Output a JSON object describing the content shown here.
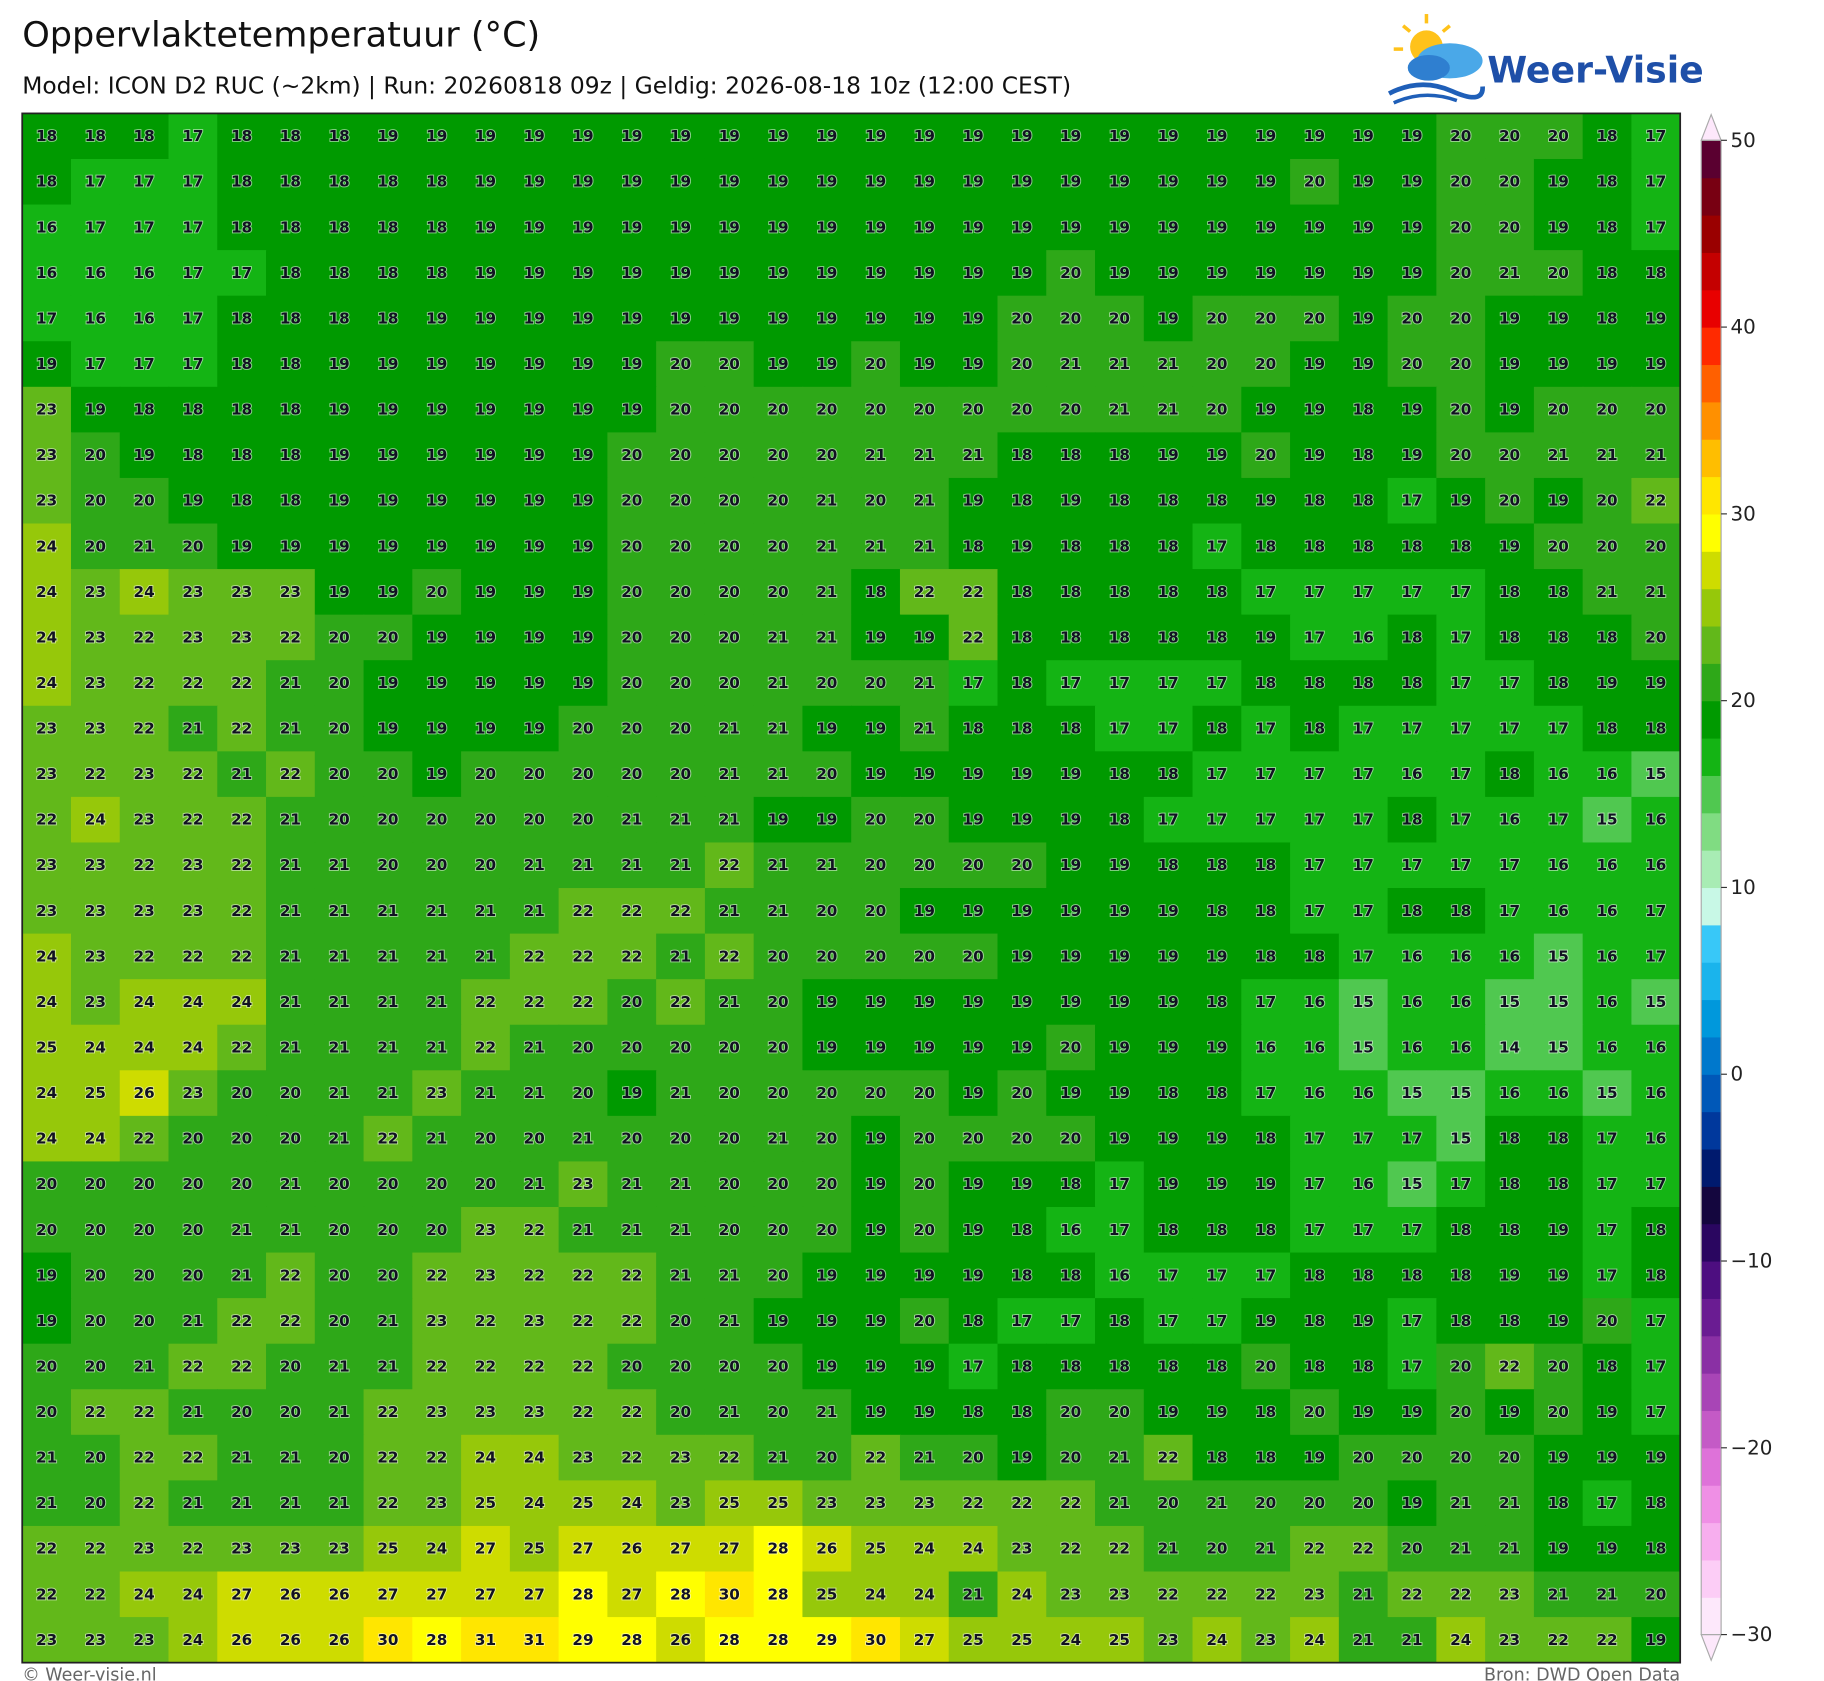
{
  "header": {
    "title": "Oppervlaktetemperatuur (°C)",
    "subtitle": "Model: ICON D2 RUC (~2km)  |  Run: 20260818 09z  |  Geldig: 2026-08-18 10z (12:00 CEST)",
    "logo": "Weer-Visie"
  },
  "map": {
    "values": [
      [
        18,
        18,
        18,
        17,
        18,
        18,
        18,
        19,
        19,
        19,
        19,
        19,
        19,
        19,
        19,
        19,
        19,
        19,
        19,
        19,
        19,
        19,
        19,
        19,
        19,
        19,
        19,
        19,
        19,
        20,
        20,
        20,
        18,
        17
      ],
      [
        18,
        17,
        17,
        17,
        18,
        18,
        18,
        18,
        18,
        19,
        19,
        19,
        19,
        19,
        19,
        19,
        19,
        19,
        19,
        19,
        19,
        19,
        19,
        19,
        19,
        19,
        20,
        19,
        19,
        20,
        20,
        19,
        18,
        17
      ],
      [
        16,
        17,
        17,
        17,
        18,
        18,
        18,
        18,
        18,
        19,
        19,
        19,
        19,
        19,
        19,
        19,
        19,
        19,
        19,
        19,
        19,
        19,
        19,
        19,
        19,
        19,
        19,
        19,
        19,
        20,
        20,
        19,
        18,
        17
      ],
      [
        16,
        16,
        16,
        17,
        17,
        18,
        18,
        18,
        18,
        19,
        19,
        19,
        19,
        19,
        19,
        19,
        19,
        19,
        19,
        19,
        19,
        20,
        19,
        19,
        19,
        19,
        19,
        19,
        19,
        20,
        21,
        20,
        18,
        18
      ],
      [
        17,
        16,
        16,
        17,
        18,
        18,
        18,
        18,
        19,
        19,
        19,
        19,
        19,
        19,
        19,
        19,
        19,
        19,
        19,
        19,
        20,
        20,
        20,
        19,
        20,
        20,
        20,
        19,
        20,
        20,
        19,
        19,
        18,
        19
      ],
      [
        19,
        17,
        17,
        17,
        18,
        18,
        19,
        19,
        19,
        19,
        19,
        19,
        19,
        20,
        20,
        19,
        19,
        20,
        19,
        19,
        20,
        21,
        21,
        21,
        20,
        20,
        19,
        19,
        20,
        20,
        19,
        19,
        19,
        19
      ],
      [
        23,
        19,
        18,
        18,
        18,
        18,
        19,
        19,
        19,
        19,
        19,
        19,
        19,
        20,
        20,
        20,
        20,
        20,
        20,
        20,
        20,
        20,
        21,
        21,
        20,
        19,
        19,
        18,
        19,
        20,
        19,
        20,
        20,
        20
      ],
      [
        23,
        20,
        19,
        18,
        18,
        18,
        19,
        19,
        19,
        19,
        19,
        19,
        20,
        20,
        20,
        20,
        20,
        21,
        21,
        21,
        18,
        18,
        18,
        19,
        19,
        20,
        19,
        18,
        19,
        20,
        20,
        21,
        21,
        21
      ],
      [
        23,
        20,
        20,
        19,
        18,
        18,
        19,
        19,
        19,
        19,
        19,
        19,
        20,
        20,
        20,
        20,
        21,
        20,
        21,
        19,
        18,
        19,
        18,
        18,
        18,
        19,
        18,
        18,
        17,
        19,
        20,
        19,
        20,
        22
      ],
      [
        24,
        20,
        21,
        20,
        19,
        19,
        19,
        19,
        19,
        19,
        19,
        19,
        20,
        20,
        20,
        20,
        21,
        21,
        21,
        18,
        19,
        18,
        18,
        18,
        17,
        18,
        18,
        18,
        18,
        18,
        19,
        20,
        20,
        20
      ],
      [
        24,
        23,
        24,
        23,
        23,
        23,
        19,
        19,
        20,
        19,
        19,
        19,
        20,
        20,
        20,
        20,
        21,
        18,
        22,
        22,
        18,
        18,
        18,
        18,
        18,
        17,
        17,
        17,
        17,
        17,
        18,
        18,
        21,
        21
      ],
      [
        24,
        23,
        22,
        23,
        23,
        22,
        20,
        20,
        19,
        19,
        19,
        19,
        20,
        20,
        20,
        21,
        21,
        19,
        19,
        22,
        18,
        18,
        18,
        18,
        18,
        19,
        17,
        16,
        18,
        17,
        18,
        18,
        18,
        20
      ],
      [
        24,
        23,
        22,
        22,
        22,
        21,
        20,
        19,
        19,
        19,
        19,
        19,
        20,
        20,
        20,
        21,
        20,
        20,
        21,
        17,
        18,
        17,
        17,
        17,
        17,
        18,
        18,
        18,
        18,
        17,
        17,
        18,
        19,
        19
      ],
      [
        23,
        23,
        22,
        21,
        22,
        21,
        20,
        19,
        19,
        19,
        19,
        20,
        20,
        20,
        21,
        21,
        19,
        19,
        21,
        18,
        18,
        18,
        17,
        17,
        18,
        17,
        18,
        17,
        17,
        17,
        17,
        17,
        18,
        18
      ],
      [
        23,
        22,
        23,
        22,
        21,
        22,
        20,
        20,
        19,
        20,
        20,
        20,
        20,
        20,
        21,
        21,
        20,
        19,
        19,
        19,
        19,
        19,
        18,
        18,
        17,
        17,
        17,
        17,
        16,
        17,
        18,
        16,
        16,
        15
      ],
      [
        22,
        24,
        23,
        22,
        22,
        21,
        20,
        20,
        20,
        20,
        20,
        20,
        21,
        21,
        21,
        19,
        19,
        20,
        20,
        19,
        19,
        19,
        18,
        17,
        17,
        17,
        17,
        17,
        18,
        17,
        16,
        17,
        15,
        16
      ],
      [
        23,
        23,
        22,
        23,
        22,
        21,
        21,
        20,
        20,
        20,
        21,
        21,
        21,
        21,
        22,
        21,
        21,
        20,
        20,
        20,
        20,
        19,
        19,
        18,
        18,
        18,
        17,
        17,
        17,
        17,
        17,
        16,
        16,
        16
      ],
      [
        23,
        23,
        23,
        23,
        22,
        21,
        21,
        21,
        21,
        21,
        21,
        22,
        22,
        22,
        21,
        21,
        20,
        20,
        19,
        19,
        19,
        19,
        19,
        19,
        18,
        18,
        17,
        17,
        18,
        18,
        17,
        16,
        16,
        17
      ],
      [
        24,
        23,
        22,
        22,
        22,
        21,
        21,
        21,
        21,
        21,
        22,
        22,
        22,
        21,
        22,
        20,
        20,
        20,
        20,
        20,
        19,
        19,
        19,
        19,
        19,
        18,
        18,
        17,
        16,
        16,
        16,
        15,
        16,
        17
      ],
      [
        24,
        23,
        24,
        24,
        24,
        21,
        21,
        21,
        21,
        22,
        22,
        22,
        20,
        22,
        21,
        20,
        19,
        19,
        19,
        19,
        19,
        19,
        19,
        19,
        18,
        17,
        16,
        15,
        16,
        16,
        15,
        15,
        16,
        15
      ],
      [
        25,
        24,
        24,
        24,
        22,
        21,
        21,
        21,
        21,
        22,
        21,
        20,
        20,
        20,
        20,
        20,
        19,
        19,
        19,
        19,
        19,
        20,
        19,
        19,
        19,
        16,
        16,
        15,
        16,
        16,
        14,
        15,
        16,
        16
      ],
      [
        24,
        25,
        26,
        23,
        20,
        20,
        21,
        21,
        23,
        21,
        21,
        20,
        19,
        21,
        20,
        20,
        20,
        20,
        20,
        19,
        20,
        19,
        19,
        18,
        18,
        17,
        16,
        16,
        15,
        15,
        16,
        16,
        15,
        16
      ],
      [
        24,
        24,
        22,
        20,
        20,
        20,
        21,
        22,
        21,
        20,
        20,
        21,
        20,
        20,
        20,
        21,
        20,
        19,
        20,
        20,
        20,
        20,
        19,
        19,
        19,
        18,
        17,
        17,
        17,
        15,
        18,
        18,
        17,
        16
      ],
      [
        20,
        20,
        20,
        20,
        20,
        21,
        20,
        20,
        20,
        20,
        21,
        23,
        21,
        21,
        20,
        20,
        20,
        19,
        20,
        19,
        19,
        18,
        17,
        19,
        19,
        19,
        17,
        16,
        15,
        17,
        18,
        18,
        17,
        17
      ],
      [
        20,
        20,
        20,
        20,
        21,
        21,
        20,
        20,
        20,
        23,
        22,
        21,
        21,
        21,
        20,
        20,
        20,
        19,
        20,
        19,
        18,
        16,
        17,
        18,
        18,
        18,
        17,
        17,
        17,
        18,
        18,
        19,
        17,
        18
      ],
      [
        19,
        20,
        20,
        20,
        21,
        22,
        20,
        20,
        22,
        23,
        22,
        22,
        22,
        21,
        21,
        20,
        19,
        19,
        19,
        19,
        18,
        18,
        16,
        17,
        17,
        17,
        18,
        18,
        18,
        18,
        19,
        19,
        17,
        18
      ],
      [
        19,
        20,
        20,
        21,
        22,
        22,
        20,
        21,
        23,
        22,
        23,
        22,
        22,
        20,
        21,
        19,
        19,
        19,
        20,
        18,
        17,
        17,
        18,
        17,
        17,
        19,
        18,
        19,
        17,
        18,
        18,
        19,
        20,
        17
      ],
      [
        20,
        20,
        21,
        22,
        22,
        20,
        21,
        21,
        22,
        22,
        22,
        22,
        20,
        20,
        20,
        20,
        19,
        19,
        19,
        17,
        18,
        18,
        18,
        18,
        18,
        20,
        18,
        18,
        17,
        20,
        22,
        20,
        18,
        17
      ],
      [
        20,
        22,
        22,
        21,
        20,
        20,
        21,
        22,
        23,
        23,
        23,
        22,
        22,
        20,
        21,
        20,
        21,
        19,
        19,
        18,
        18,
        20,
        20,
        19,
        19,
        18,
        20,
        19,
        19,
        20,
        19,
        20,
        19,
        17
      ],
      [
        21,
        20,
        22,
        22,
        21,
        21,
        20,
        22,
        22,
        24,
        24,
        23,
        22,
        23,
        22,
        21,
        20,
        22,
        21,
        20,
        19,
        20,
        21,
        22,
        18,
        18,
        19,
        20,
        20,
        20,
        20,
        19,
        19,
        19
      ],
      [
        21,
        20,
        22,
        21,
        21,
        21,
        21,
        22,
        23,
        25,
        24,
        25,
        24,
        23,
        25,
        25,
        23,
        23,
        23,
        22,
        22,
        22,
        21,
        20,
        21,
        20,
        20,
        20,
        19,
        21,
        21,
        18,
        17,
        18
      ],
      [
        22,
        22,
        23,
        22,
        23,
        23,
        23,
        25,
        24,
        27,
        25,
        27,
        26,
        27,
        27,
        28,
        26,
        25,
        24,
        24,
        23,
        22,
        22,
        21,
        20,
        21,
        22,
        22,
        20,
        21,
        21,
        19,
        19,
        18
      ],
      [
        22,
        22,
        24,
        24,
        27,
        26,
        26,
        27,
        27,
        27,
        27,
        28,
        27,
        28,
        30,
        28,
        25,
        24,
        24,
        21,
        24,
        23,
        23,
        22,
        22,
        22,
        23,
        21,
        22,
        22,
        23,
        21,
        21,
        20
      ],
      [
        23,
        23,
        23,
        24,
        26,
        26,
        26,
        30,
        28,
        31,
        31,
        29,
        28,
        26,
        28,
        28,
        29,
        30,
        27,
        25,
        25,
        24,
        25,
        23,
        24,
        23,
        24,
        21,
        21,
        24,
        23,
        22,
        22,
        19
      ]
    ]
  },
  "colorbar": {
    "lim": [
      -30,
      50
    ],
    "ticks": [
      {
        "value": -30,
        "label": "−30"
      },
      {
        "value": -20,
        "label": "−20"
      },
      {
        "value": -10,
        "label": "−10"
      },
      0,
      10,
      20,
      30,
      40,
      50
    ],
    "colors": [
      "#fde8fb",
      "#fccdf6",
      "#f7aeee",
      "#ef8fe5",
      "#de72d9",
      "#c45ac6",
      "#a845b6",
      "#8a30a4",
      "#6a1c92",
      "#4d0e80",
      "#2a0660",
      "#14063e",
      "#001a6e",
      "#00389c",
      "#0058b8",
      "#0078cc",
      "#0098dc",
      "#1ab4ec",
      "#38c8f8",
      "#c8f8e6",
      "#a8ecb4",
      "#80dc82",
      "#50c850",
      "#14b414",
      "#009a00",
      "#2ea818",
      "#62b81a",
      "#96c80a",
      "#cedc00",
      "#ffff00",
      "#ffe600",
      "#ffbe00",
      "#ff9000",
      "#ff6000",
      "#ff2a00",
      "#e80000",
      "#c40000",
      "#9a0000",
      "#780012",
      "#5a0030"
    ]
  },
  "footer": {
    "left": "© Weer-visie.nl",
    "right": "Bron: DWD Open Data"
  }
}
